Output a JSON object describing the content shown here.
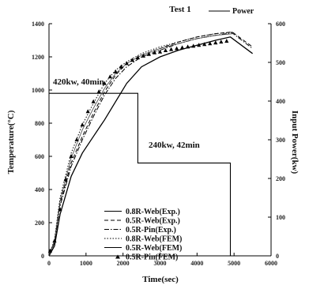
{
  "chart_data": {
    "type": "line",
    "title": "Test 1",
    "xlabel": "Time(sec)",
    "ylabel_left": "Temperature(°C)",
    "ylabel_right": "Input Power(kw)",
    "xlim": [
      0,
      6000
    ],
    "ylim_left": [
      0,
      1400
    ],
    "ylim_right": [
      0,
      600
    ],
    "x_ticks": [
      "0",
      "1000",
      "2000",
      "3000",
      "4000",
      "5000",
      "6000"
    ],
    "y_ticks_left": [
      "0",
      "200",
      "400",
      "600",
      "800",
      "1000",
      "1200",
      "1400"
    ],
    "y_ticks_right": [
      "0",
      "100",
      "200",
      "300",
      "400",
      "500",
      "600"
    ],
    "grid": false,
    "annotations": [
      "420kw, 40min",
      "240kw, 42min"
    ],
    "power": {
      "name": "Power",
      "x": [
        0,
        2400,
        2400,
        4900,
        4900,
        6000
      ],
      "y": [
        420,
        420,
        240,
        240,
        0,
        0
      ]
    },
    "series": [
      {
        "name": "0.8R-Web(Exp.)",
        "style": "solid",
        "x": [
          0,
          150,
          300,
          600,
          900,
          1200,
          1500,
          1800,
          2100,
          2500,
          3000,
          3500,
          4000,
          4500,
          4900,
          5500
        ],
        "y": [
          0,
          60,
          250,
          480,
          620,
          720,
          820,
          930,
          1040,
          1140,
          1200,
          1240,
          1270,
          1300,
          1320,
          1220
        ]
      },
      {
        "name": "0.5R-Web(Exp.)",
        "style": "dashed",
        "x": [
          0,
          150,
          300,
          600,
          900,
          1200,
          1500,
          1800,
          2100,
          2500,
          3000,
          3500,
          4000,
          4500,
          4950,
          5500
        ],
        "y": [
          0,
          90,
          320,
          560,
          720,
          860,
          990,
          1090,
          1160,
          1210,
          1250,
          1290,
          1320,
          1340,
          1350,
          1260
        ]
      },
      {
        "name": "0.5R-Pin(Exp.)",
        "style": "dashdot",
        "x": [
          0,
          150,
          300,
          600,
          900,
          1200,
          1500,
          1800,
          2100,
          2500,
          3000,
          3500,
          4000,
          4500,
          4950,
          5500
        ],
        "y": [
          0,
          80,
          300,
          540,
          700,
          840,
          970,
          1070,
          1140,
          1200,
          1240,
          1280,
          1310,
          1330,
          1345,
          1250
        ]
      },
      {
        "name": "0.8R-Web(FEM)",
        "style": "dotted",
        "x": [
          0,
          150,
          300,
          600,
          900,
          1200,
          1500,
          1800,
          2100,
          2500,
          3000,
          3500,
          4000,
          4500,
          5000
        ],
        "y": [
          0,
          100,
          350,
          620,
          790,
          920,
          1040,
          1120,
          1170,
          1220,
          1260,
          1290,
          1320,
          1340,
          1350
        ]
      },
      {
        "name": "0.5R-Web(FEM)",
        "style": "solid",
        "x": [
          0,
          150,
          300,
          600,
          900,
          1200,
          1500,
          1800,
          2100,
          2500,
          3000,
          3500,
          4000,
          4500,
          5000
        ],
        "y": [
          0,
          90,
          330,
          590,
          760,
          890,
          1010,
          1100,
          1160,
          1210,
          1250,
          1280,
          1310,
          1330,
          1340
        ]
      },
      {
        "name": "0.5R-Pin(FEM)",
        "style": "triangles",
        "x": [
          30,
          150,
          300,
          450,
          600,
          750,
          900,
          1050,
          1200,
          1350,
          1500,
          1650,
          1800,
          1950,
          2100,
          2250,
          2400,
          2550,
          2700,
          2850,
          3000,
          3150,
          3300,
          3450,
          3600,
          3750,
          3900,
          4050,
          4200,
          4350,
          4500,
          4650,
          4800
        ],
        "y": [
          30,
          90,
          280,
          460,
          600,
          700,
          790,
          870,
          930,
          990,
          1040,
          1080,
          1110,
          1140,
          1160,
          1180,
          1195,
          1205,
          1215,
          1225,
          1230,
          1238,
          1245,
          1250,
          1255,
          1260,
          1265,
          1270,
          1275,
          1280,
          1285,
          1290,
          1295
        ]
      }
    ]
  }
}
